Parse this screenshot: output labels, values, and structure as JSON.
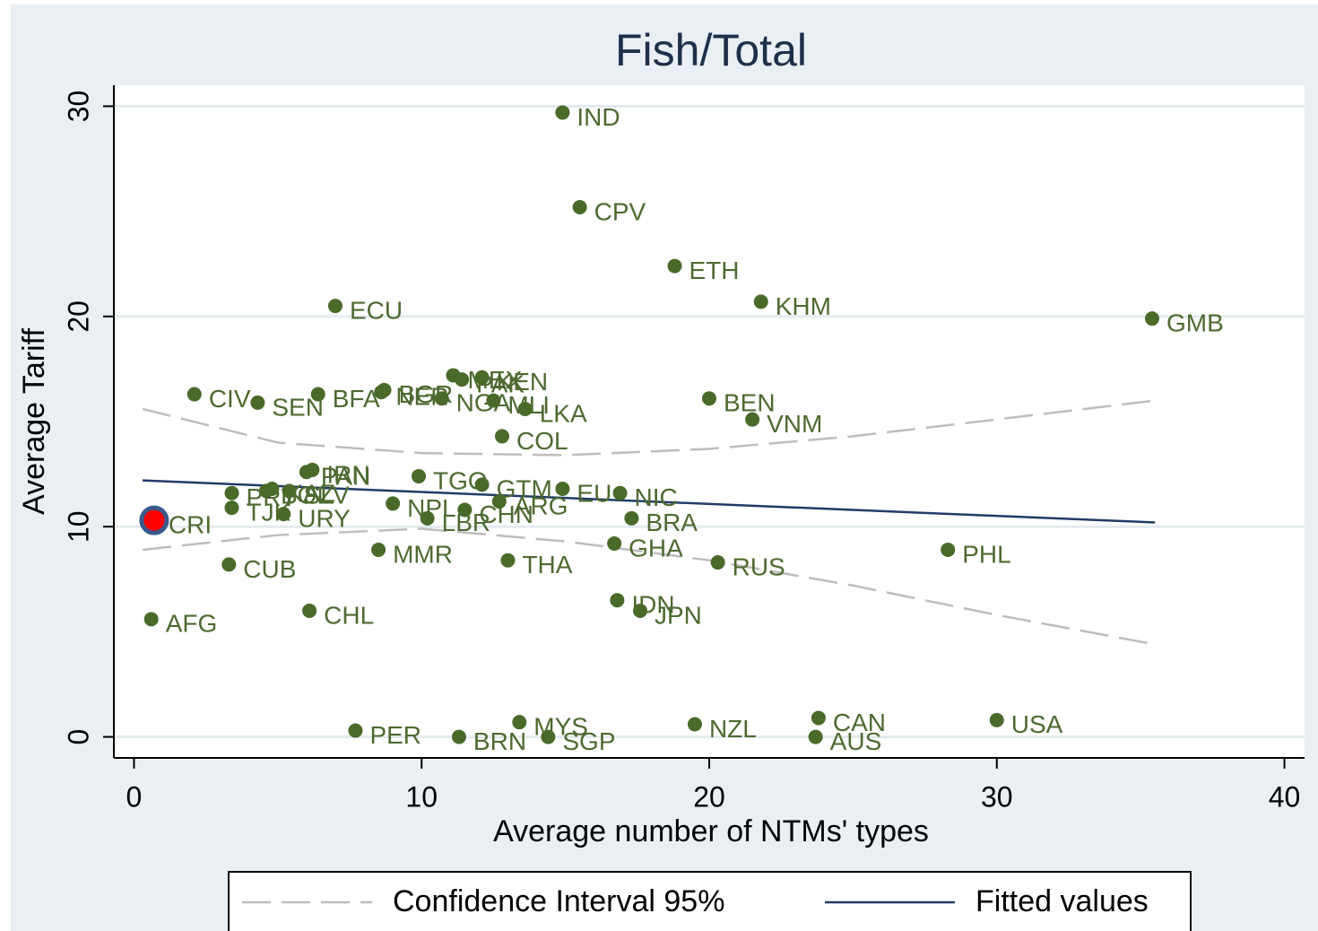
{
  "chart_data": {
    "type": "scatter",
    "title": "Fish/Total",
    "xlabel": "Average number of NTMs' types",
    "ylabel": "Average Tariff",
    "xlim": [
      -0.7,
      40.7
    ],
    "ylim": [
      -1,
      31
    ],
    "xticks": [
      0,
      10,
      20,
      30,
      40
    ],
    "yticks": [
      0,
      10,
      20,
      30
    ],
    "grid": true,
    "points": {
      "color": "#4a6a2a",
      "label_color": "#4d6a30",
      "labels": [
        "IND",
        "CPV",
        "ETH",
        "KHM",
        "ECU",
        "GMB",
        "CIV",
        "SEN",
        "BFA",
        "NER",
        "BGR",
        "NGA",
        "MEX",
        "PAK",
        "KEN",
        "MLI",
        "LKA",
        "BEN",
        "VNM",
        "COL",
        "PAN",
        "IRN",
        "TGO",
        "GTM",
        "EU",
        "NIC",
        "PRY",
        "TJK",
        "BOL",
        "KAZ",
        "SLV",
        "URY",
        "NPL",
        "LBR",
        "CHN",
        "ARG",
        "BRA",
        "CRI",
        "MMR",
        "THA",
        "GHA",
        "RUS",
        "PHL",
        "CUB",
        "IDN",
        "JPN",
        "CHL",
        "AFG",
        "PER",
        "BRN",
        "MYS",
        "SGP",
        "NZL",
        "CAN",
        "AUS",
        "USA"
      ],
      "x": [
        14.9,
        15.5,
        18.8,
        21.8,
        7.0,
        35.4,
        2.1,
        4.3,
        6.4,
        8.6,
        8.7,
        10.7,
        11.1,
        11.4,
        12.1,
        12.5,
        13.6,
        20.0,
        21.5,
        12.8,
        6.0,
        6.2,
        9.9,
        12.1,
        14.9,
        16.9,
        3.4,
        3.4,
        4.6,
        4.8,
        5.4,
        5.2,
        9.0,
        10.2,
        11.5,
        12.7,
        17.3,
        0.7,
        8.5,
        13.0,
        16.7,
        20.3,
        28.3,
        3.3,
        16.8,
        17.6,
        6.1,
        0.6,
        7.7,
        11.3,
        13.4,
        14.4,
        19.5,
        23.8,
        23.7,
        30.0
      ],
      "values": [
        29.7,
        25.2,
        22.4,
        20.7,
        20.5,
        19.9,
        16.3,
        15.9,
        16.3,
        16.4,
        16.5,
        16.1,
        17.2,
        17.0,
        17.1,
        16.0,
        15.6,
        16.1,
        15.1,
        14.3,
        12.6,
        12.7,
        12.4,
        12.0,
        11.8,
        11.6,
        11.6,
        10.9,
        11.7,
        11.8,
        11.7,
        10.6,
        11.1,
        10.4,
        10.8,
        11.2,
        10.4,
        10.3,
        8.9,
        8.4,
        9.2,
        8.3,
        8.9,
        8.2,
        6.5,
        6.0,
        6.0,
        5.6,
        0.3,
        0.0,
        0.7,
        0.0,
        0.6,
        0.9,
        0.0,
        0.8
      ],
      "highlight": {
        "index": 37,
        "color": "#ff0000",
        "ring": "#3a5a8c"
      }
    },
    "lines": [
      {
        "name": "Confidence Interval 95%",
        "color": "#bdbdbd",
        "dashed": true,
        "x": [
          0.3,
          5,
          10,
          15,
          20,
          25,
          30,
          35.5
        ],
        "values": [
          15.6,
          14.0,
          13.5,
          13.4,
          13.7,
          14.3,
          15.1,
          16.0
        ]
      },
      {
        "color": "#bdbdbd",
        "dashed": true,
        "x": [
          0.3,
          5,
          10,
          15,
          20,
          25,
          30,
          35.5
        ],
        "values": [
          8.9,
          9.6,
          9.9,
          9.3,
          8.4,
          7.2,
          5.8,
          4.4
        ]
      },
      {
        "name": "Fitted values",
        "color": "#1f3c66",
        "dashed": false,
        "x": [
          0.3,
          35.5
        ],
        "values": [
          12.2,
          10.2
        ]
      }
    ]
  }
}
